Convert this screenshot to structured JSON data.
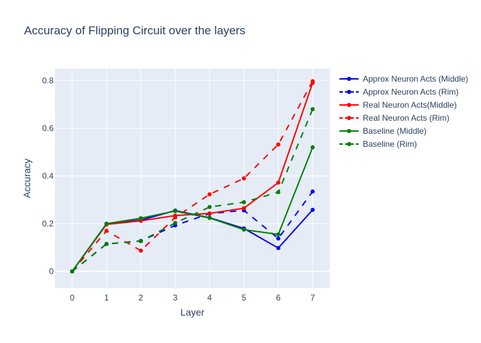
{
  "chart_data": {
    "type": "line",
    "title": "Accuracy of Flipping Circuit over the layers",
    "xlabel": "Layer",
    "ylabel": "Accuracy",
    "x": [
      0,
      1,
      2,
      3,
      4,
      5,
      6,
      7
    ],
    "xlim": [
      -0.5,
      7.5
    ],
    "ylim": [
      -0.07,
      0.85
    ],
    "yticks": [
      0,
      0.2,
      0.4,
      0.6,
      0.8
    ],
    "ytick_labels": [
      "0",
      "0.2",
      "0.4",
      "0.6",
      "0.8"
    ],
    "xtick_labels": [
      "0",
      "1",
      "2",
      "3",
      "4",
      "5",
      "6",
      "7"
    ],
    "grid": true,
    "legend_position": "right",
    "series": [
      {
        "name": "Approx Neuron Acts (Middle)",
        "color": "#0000ff",
        "dash": "solid",
        "values": [
          0.0,
          0.2,
          0.215,
          0.255,
          0.225,
          0.18,
          0.098,
          0.258
        ]
      },
      {
        "name": "Approx Neuron Acts (Rim)",
        "color": "#0000ff",
        "dash": "dash",
        "values": [
          0.0,
          0.115,
          0.128,
          0.193,
          0.242,
          0.256,
          0.138,
          0.335
        ]
      },
      {
        "name": "Real Neuron Acts(Middle)",
        "color": "#ff0000",
        "dash": "solid",
        "values": [
          0.0,
          0.197,
          0.212,
          0.234,
          0.243,
          0.265,
          0.372,
          0.79
        ]
      },
      {
        "name": "Real Neuron Acts (Rim)",
        "color": "#ff0000",
        "dash": "dash",
        "values": [
          0.0,
          0.17,
          0.087,
          0.226,
          0.323,
          0.39,
          0.532,
          0.797
        ]
      },
      {
        "name": "Baseline (Middle)",
        "color": "#008000",
        "dash": "solid",
        "values": [
          0.0,
          0.2,
          0.223,
          0.253,
          0.224,
          0.175,
          0.155,
          0.52
        ]
      },
      {
        "name": "Baseline (Rim)",
        "color": "#008000",
        "dash": "dash",
        "values": [
          0.0,
          0.115,
          0.127,
          0.203,
          0.27,
          0.29,
          0.332,
          0.68
        ]
      }
    ]
  }
}
